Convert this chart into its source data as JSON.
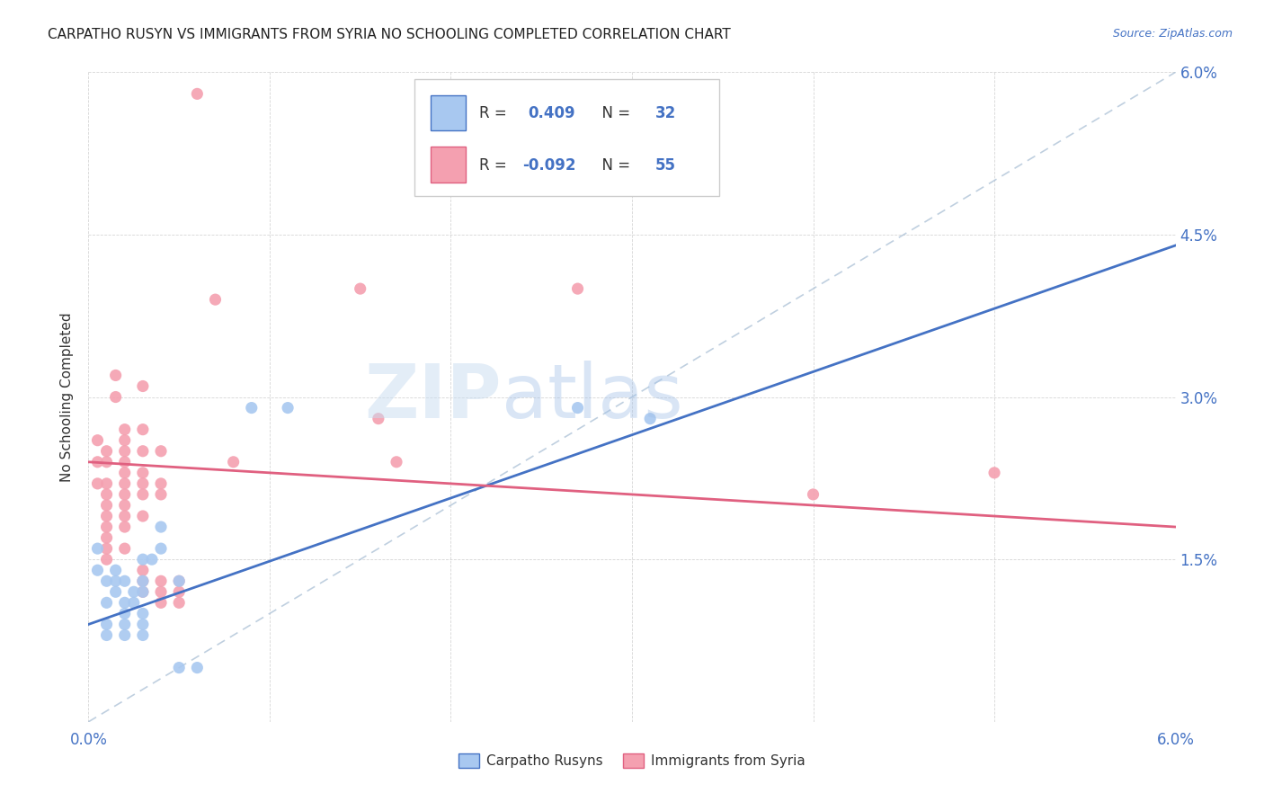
{
  "title": "CARPATHO RUSYN VS IMMIGRANTS FROM SYRIA NO SCHOOLING COMPLETED CORRELATION CHART",
  "source": "Source: ZipAtlas.com",
  "ylabel": "No Schooling Completed",
  "xlim": [
    0.0,
    0.06
  ],
  "ylim": [
    0.0,
    0.06
  ],
  "x_ticks": [
    0.0,
    0.01,
    0.02,
    0.03,
    0.04,
    0.05,
    0.06
  ],
  "y_ticks": [
    0.0,
    0.015,
    0.03,
    0.045,
    0.06
  ],
  "color_blue": "#A8C8F0",
  "color_pink": "#F4A0B0",
  "line_blue": "#4472C4",
  "line_pink": "#E06080",
  "line_dashed": "#B0C4D8",
  "watermark_zip": "ZIP",
  "watermark_atlas": "atlas",
  "legend_label1": "Carpatho Rusyns",
  "legend_label2": "Immigrants from Syria",
  "blue_scatter": [
    [
      0.0005,
      0.016
    ],
    [
      0.0005,
      0.014
    ],
    [
      0.001,
      0.013
    ],
    [
      0.001,
      0.011
    ],
    [
      0.001,
      0.009
    ],
    [
      0.001,
      0.008
    ],
    [
      0.0015,
      0.014
    ],
    [
      0.0015,
      0.013
    ],
    [
      0.0015,
      0.012
    ],
    [
      0.002,
      0.013
    ],
    [
      0.002,
      0.011
    ],
    [
      0.002,
      0.01
    ],
    [
      0.002,
      0.009
    ],
    [
      0.002,
      0.008
    ],
    [
      0.0025,
      0.012
    ],
    [
      0.0025,
      0.011
    ],
    [
      0.003,
      0.015
    ],
    [
      0.003,
      0.013
    ],
    [
      0.003,
      0.012
    ],
    [
      0.003,
      0.01
    ],
    [
      0.003,
      0.009
    ],
    [
      0.003,
      0.008
    ],
    [
      0.0035,
      0.015
    ],
    [
      0.004,
      0.018
    ],
    [
      0.004,
      0.016
    ],
    [
      0.005,
      0.013
    ],
    [
      0.005,
      0.005
    ],
    [
      0.006,
      0.005
    ],
    [
      0.009,
      0.029
    ],
    [
      0.011,
      0.029
    ],
    [
      0.027,
      0.029
    ],
    [
      0.031,
      0.028
    ]
  ],
  "pink_scatter": [
    [
      0.0005,
      0.026
    ],
    [
      0.0005,
      0.024
    ],
    [
      0.0005,
      0.022
    ],
    [
      0.001,
      0.025
    ],
    [
      0.001,
      0.024
    ],
    [
      0.001,
      0.022
    ],
    [
      0.001,
      0.021
    ],
    [
      0.001,
      0.02
    ],
    [
      0.001,
      0.019
    ],
    [
      0.001,
      0.018
    ],
    [
      0.001,
      0.017
    ],
    [
      0.001,
      0.016
    ],
    [
      0.001,
      0.015
    ],
    [
      0.0015,
      0.032
    ],
    [
      0.0015,
      0.03
    ],
    [
      0.002,
      0.027
    ],
    [
      0.002,
      0.026
    ],
    [
      0.002,
      0.025
    ],
    [
      0.002,
      0.024
    ],
    [
      0.002,
      0.023
    ],
    [
      0.002,
      0.022
    ],
    [
      0.002,
      0.021
    ],
    [
      0.002,
      0.02
    ],
    [
      0.002,
      0.019
    ],
    [
      0.002,
      0.018
    ],
    [
      0.002,
      0.016
    ],
    [
      0.003,
      0.031
    ],
    [
      0.003,
      0.027
    ],
    [
      0.003,
      0.025
    ],
    [
      0.003,
      0.023
    ],
    [
      0.003,
      0.022
    ],
    [
      0.003,
      0.021
    ],
    [
      0.003,
      0.019
    ],
    [
      0.003,
      0.014
    ],
    [
      0.003,
      0.013
    ],
    [
      0.003,
      0.012
    ],
    [
      0.004,
      0.025
    ],
    [
      0.004,
      0.022
    ],
    [
      0.004,
      0.021
    ],
    [
      0.004,
      0.013
    ],
    [
      0.004,
      0.012
    ],
    [
      0.004,
      0.011
    ],
    [
      0.005,
      0.013
    ],
    [
      0.005,
      0.012
    ],
    [
      0.005,
      0.011
    ],
    [
      0.006,
      0.058
    ],
    [
      0.007,
      0.039
    ],
    [
      0.008,
      0.024
    ],
    [
      0.015,
      0.04
    ],
    [
      0.016,
      0.028
    ],
    [
      0.017,
      0.024
    ],
    [
      0.027,
      0.04
    ],
    [
      0.04,
      0.021
    ],
    [
      0.05,
      0.023
    ]
  ],
  "blue_line_x0": 0.0,
  "blue_line_y0": 0.009,
  "blue_line_x1": 0.06,
  "blue_line_y1": 0.044,
  "pink_line_x0": 0.0,
  "pink_line_y0": 0.024,
  "pink_line_x1": 0.06,
  "pink_line_y1": 0.018
}
